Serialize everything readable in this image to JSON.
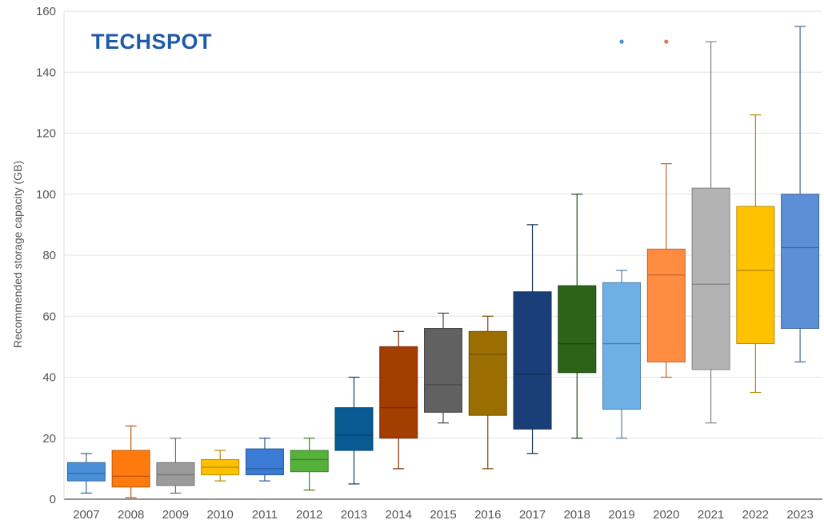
{
  "logo": {
    "text": "TECHSPOT",
    "color": "#1f5aa8"
  },
  "chart_data": {
    "type": "boxplot",
    "title": "",
    "xlabel": "",
    "ylabel": "Recommended storage capacity (GB)",
    "ylim": [
      0,
      160
    ],
    "yticks": [
      0,
      20,
      40,
      60,
      80,
      100,
      120,
      140,
      160
    ],
    "grid": true,
    "categories": [
      "2007",
      "2008",
      "2009",
      "2010",
      "2011",
      "2012",
      "2013",
      "2014",
      "2015",
      "2016",
      "2017",
      "2018",
      "2019",
      "2020",
      "2021",
      "2022",
      "2023"
    ],
    "boxes": [
      {
        "category": "2007",
        "min": 2,
        "q1": 6,
        "median": 8.5,
        "q3": 12,
        "max": 15,
        "color": "#4a90d9"
      },
      {
        "category": "2008",
        "min": 0.5,
        "q1": 4,
        "median": 7.5,
        "q3": 16,
        "max": 24,
        "color": "#ff7a0d"
      },
      {
        "category": "2009",
        "min": 2,
        "q1": 4.5,
        "median": 8,
        "q3": 12,
        "max": 20,
        "color": "#9b9b9b"
      },
      {
        "category": "2010",
        "min": 6,
        "q1": 8,
        "median": 10.5,
        "q3": 13,
        "max": 16,
        "color": "#ffc000"
      },
      {
        "category": "2011",
        "min": 6,
        "q1": 8,
        "median": 10,
        "q3": 16.5,
        "max": 20,
        "color": "#3a7bd5"
      },
      {
        "category": "2012",
        "min": 3,
        "q1": 9,
        "median": 13,
        "q3": 16,
        "max": 20,
        "color": "#56b13c"
      },
      {
        "category": "2013",
        "min": 5,
        "q1": 16,
        "median": 21,
        "q3": 30,
        "max": 40,
        "color": "#075a92"
      },
      {
        "category": "2014",
        "min": 10,
        "q1": 20,
        "median": 30,
        "q3": 50,
        "max": 55,
        "color": "#a33d00"
      },
      {
        "category": "2015",
        "min": 25,
        "q1": 28.5,
        "median": 37.5,
        "q3": 56,
        "max": 61,
        "color": "#616161"
      },
      {
        "category": "2016",
        "min": 10,
        "q1": 27.5,
        "median": 47.5,
        "q3": 55,
        "max": 60,
        "color": "#9a6e00"
      },
      {
        "category": "2017",
        "min": 15,
        "q1": 23,
        "median": 41,
        "q3": 68,
        "max": 90,
        "color": "#1a3f78"
      },
      {
        "category": "2018",
        "min": 20,
        "q1": 41.5,
        "median": 51,
        "q3": 70,
        "max": 100,
        "color": "#2c6318"
      },
      {
        "category": "2019",
        "min": 20,
        "q1": 29.5,
        "median": 51,
        "q3": 71,
        "max": 75,
        "color": "#6eb0e6"
      },
      {
        "category": "2020",
        "min": 40,
        "q1": 45,
        "median": 73.5,
        "q3": 82,
        "max": 110,
        "color": "#ff8c40"
      },
      {
        "category": "2021",
        "min": 25,
        "q1": 42.5,
        "median": 70.5,
        "q3": 102,
        "max": 150,
        "color": "#b3b3b3"
      },
      {
        "category": "2022",
        "min": 35,
        "q1": 51,
        "median": 75,
        "q3": 96,
        "max": 126,
        "color": "#ffc200"
      },
      {
        "category": "2023",
        "min": 45,
        "q1": 56,
        "median": 82.5,
        "q3": 100,
        "max": 155,
        "color": "#5b8fd6"
      }
    ],
    "outliers": [
      {
        "category": "2019",
        "value": 150,
        "color": "#4a90d9"
      },
      {
        "category": "2020",
        "value": 150,
        "color": "#e8774a"
      }
    ]
  }
}
